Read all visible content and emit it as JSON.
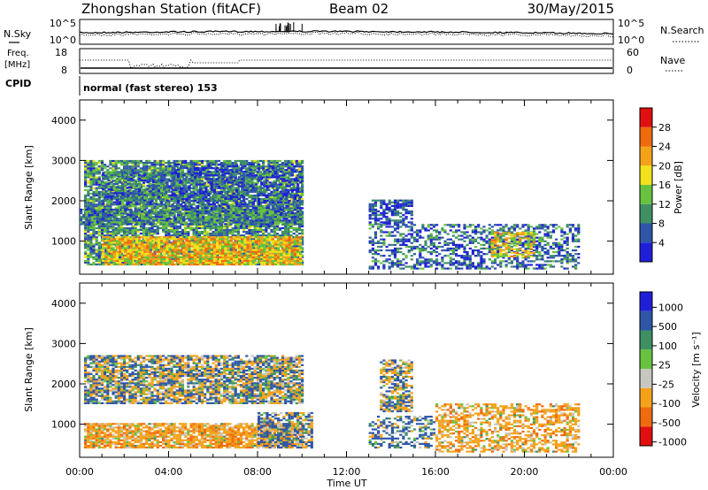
{
  "header": {
    "title": "Zhongshan Station (fitACF)",
    "beam": "Beam 02",
    "date": "30/May/2015"
  },
  "noise_panel": {
    "left_label": "N.Sky",
    "left_ticks": [
      "10^5",
      "10^0"
    ],
    "right_ticks": [
      "10^5",
      "10^0"
    ],
    "right_label": "N.Search"
  },
  "freq_panel": {
    "left_label_1": "Freq.",
    "left_label_2": "[MHz]",
    "left_ticks": [
      "18",
      "8"
    ],
    "right_ticks": [
      "60",
      "0"
    ],
    "right_label": "Nave"
  },
  "cpid": {
    "label": "CPID",
    "mode": "normal (fast stereo) 153"
  },
  "chart_data": [
    {
      "type": "heatmap",
      "title": "",
      "quantity": "Power",
      "ylabel": "Slant Range [km]",
      "ylim": [
        180,
        4500
      ],
      "yticks": [
        "1000",
        "2000",
        "3000",
        "4000"
      ],
      "colorbar_label": "Power [dB]",
      "colorbar_ticks": [
        "4",
        "8",
        "12",
        "16",
        "20",
        "24",
        "28"
      ],
      "colors": [
        "#1f1fd8",
        "#2e56a8",
        "#3f8f65",
        "#67c23f",
        "#f2e21b",
        "#f4a21a",
        "#f06a0e",
        "#e10f0f"
      ],
      "scatter_regions": [
        {
          "t0": 0.2,
          "t1": 10.0,
          "r0": 400,
          "r1": 3000,
          "density": 0.85,
          "mean": 12
        },
        {
          "t0": 1.0,
          "t1": 10.0,
          "r0": 400,
          "r1": 1100,
          "density": 0.9,
          "mean": 22
        },
        {
          "t0": 0.0,
          "t1": 10.0,
          "r0": 1400,
          "r1": 1800,
          "density": 0.8,
          "mean": 11
        },
        {
          "t0": 1.0,
          "t1": 4.0,
          "r0": 1900,
          "r1": 2700,
          "density": 0.7,
          "mean": 10
        },
        {
          "t0": 4.0,
          "t1": 10.0,
          "r0": 1800,
          "r1": 2900,
          "density": 0.45,
          "mean": 6
        },
        {
          "t0": 13.0,
          "t1": 15.0,
          "r0": 1400,
          "r1": 2000,
          "density": 0.7,
          "mean": 7
        },
        {
          "t0": 13.0,
          "t1": 22.5,
          "r0": 300,
          "r1": 1400,
          "density": 0.5,
          "mean": 9
        },
        {
          "t0": 18.5,
          "t1": 20.5,
          "r0": 600,
          "r1": 1200,
          "density": 0.6,
          "mean": 20
        }
      ]
    },
    {
      "type": "heatmap",
      "title": "",
      "quantity": "Velocity",
      "ylabel": "Slant Range [km]",
      "xlabel": "Time UT",
      "ylim": [
        180,
        4500
      ],
      "xlim": [
        0,
        24
      ],
      "yticks": [
        "1000",
        "2000",
        "3000",
        "4000"
      ],
      "xticks": [
        "00:00",
        "04:00",
        "08:00",
        "12:00",
        "16:00",
        "20:00",
        "00:00"
      ],
      "colorbar_label": "Velocity [m s⁻¹]",
      "colorbar_ticks": [
        "1000",
        "500",
        "100",
        "25",
        "-25",
        "-100",
        "-500",
        "-1000"
      ],
      "colors": [
        "#e10f0f",
        "#f06a0e",
        "#f4a21a",
        "#c7c7c0",
        "#67c23f",
        "#3f8f65",
        "#2e56a8",
        "#1f1fd8"
      ],
      "scatter_regions": [
        {
          "t0": 0.2,
          "t1": 10.0,
          "r0": 1500,
          "r1": 2700,
          "density": 0.8,
          "mean": 0
        },
        {
          "t0": 0.2,
          "t1": 10.0,
          "r0": 400,
          "r1": 1000,
          "density": 0.85,
          "mean": -300
        },
        {
          "t0": 8.0,
          "t1": 10.5,
          "r0": 400,
          "r1": 1300,
          "density": 0.7,
          "mean": 100
        },
        {
          "t0": 13.5,
          "t1": 15.0,
          "r0": 1300,
          "r1": 2600,
          "density": 0.7,
          "mean": 0
        },
        {
          "t0": 13.0,
          "t1": 16.0,
          "r0": 400,
          "r1": 1200,
          "density": 0.45,
          "mean": 150
        },
        {
          "t0": 16.0,
          "t1": 22.5,
          "r0": 300,
          "r1": 1500,
          "density": 0.55,
          "mean": -300
        }
      ]
    }
  ]
}
